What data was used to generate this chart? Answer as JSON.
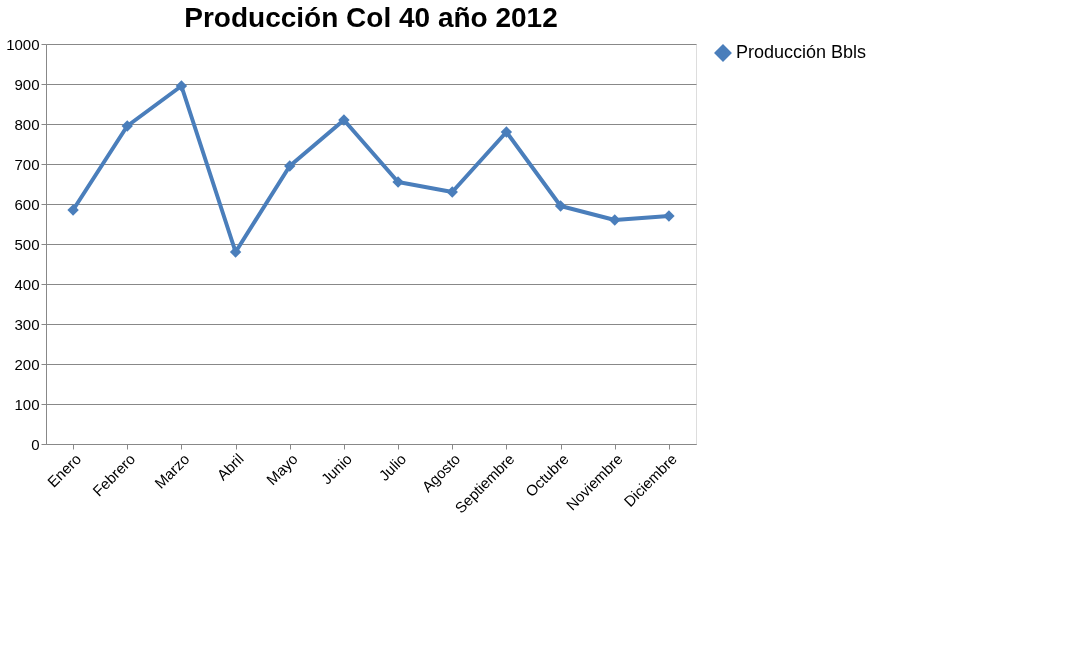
{
  "chart_data": {
    "type": "line",
    "title": "Producción Col 40 año 2012",
    "categories": [
      "Enero",
      "Febrero",
      "Marzo",
      "Abril",
      "Mayo",
      "Junio",
      "Julio",
      "Agosto",
      "Septiembre",
      "Octubre",
      "Noviembre",
      "Diciembre"
    ],
    "series": [
      {
        "name": "Producción Bbls",
        "color": "#4a7ebb",
        "values": [
          585,
          795,
          895,
          480,
          695,
          810,
          655,
          630,
          780,
          595,
          560,
          570
        ]
      }
    ],
    "ylim": [
      0,
      1000
    ],
    "yticks": [
      0,
      100,
      200,
      300,
      400,
      500,
      600,
      700,
      800,
      900,
      1000
    ],
    "grid": "y",
    "legend": "right",
    "marker": "diamond",
    "line_style": "solid"
  }
}
